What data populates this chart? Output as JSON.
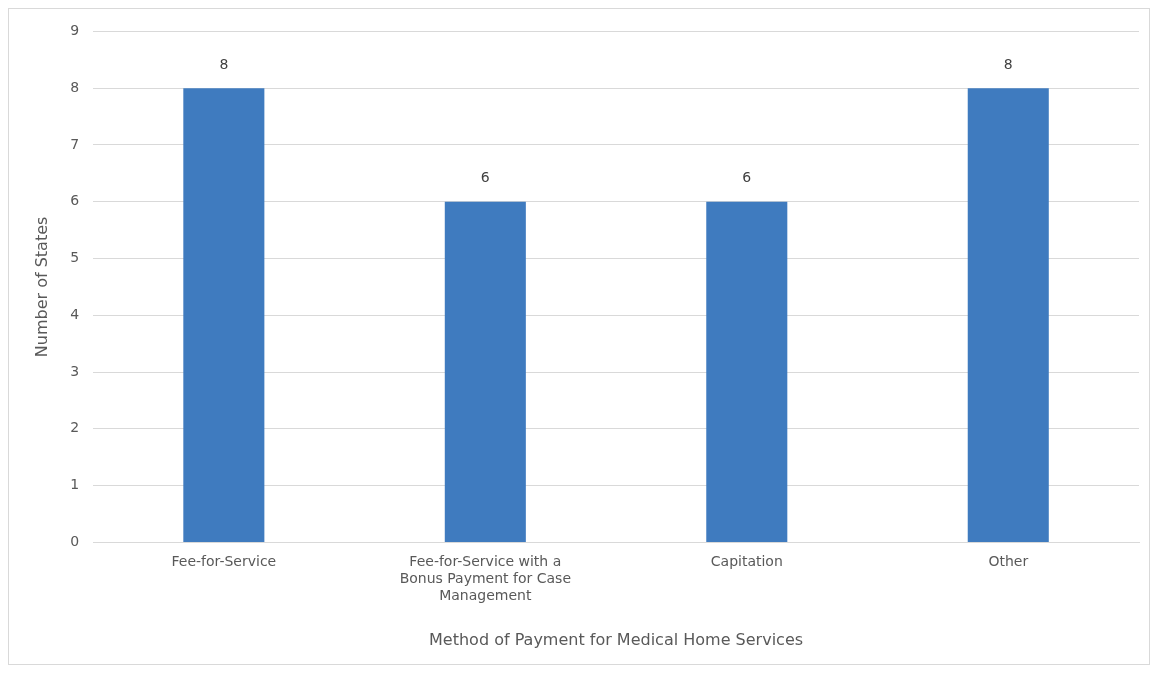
{
  "chart_data": {
    "type": "bar",
    "xlabel": "Method of Payment for Medical Home Services",
    "ylabel": "Number of States",
    "categories": [
      "Fee-for-Service",
      "Fee-for-Service with a Bonus Payment for Case Management",
      "Capitation",
      "Other"
    ],
    "values": [
      8,
      6,
      6,
      8
    ],
    "color": "#3f7bbf",
    "ylim": [
      0,
      9
    ],
    "yticks": [
      0,
      1,
      2,
      3,
      4,
      5,
      6,
      7,
      8,
      9
    ],
    "grid": "y",
    "data_labels": true,
    "legend": false
  }
}
